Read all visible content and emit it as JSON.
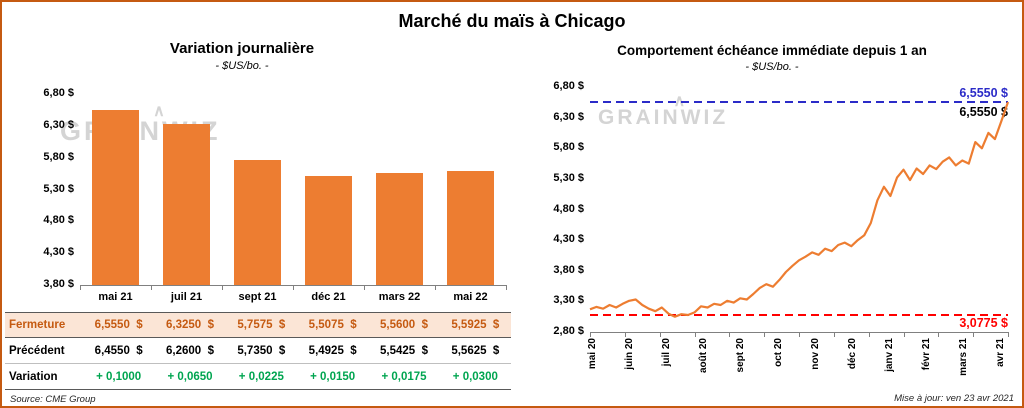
{
  "page": {
    "title": "Marché du maïs à Chicago",
    "source": "Source: CME Group",
    "updated": "Mise à jour: ven 23 avr 2021",
    "watermark": "GRAINWIZ"
  },
  "colors": {
    "accent_orange": "#ED7D31",
    "page_border": "#C55A11",
    "fermeture_bg": "#FBE5D6",
    "fermeture_text": "#C55A11",
    "variation_green": "#00A550",
    "high_line_blue": "#2B2BC8",
    "low_line_red": "#FF0000",
    "axis_gray": "#808080"
  },
  "chart_data": [
    {
      "type": "bar",
      "title": "Variation journalière",
      "subtitle": "- $US/bo. -",
      "categories": [
        "mai 21",
        "juil 21",
        "sept 21",
        "déc 21",
        "mars 22",
        "mai 22"
      ],
      "values": [
        6.555,
        6.325,
        5.7575,
        5.5075,
        5.56,
        5.5925
      ],
      "ylim": [
        3.8,
        6.8
      ],
      "ytick_labels": [
        "6,80 $",
        "6,30 $",
        "5,80 $",
        "5,30 $",
        "4,80 $",
        "4,30 $",
        "3,80 $"
      ],
      "bar_color": "#ED7D31",
      "grid": false,
      "legend": false
    },
    {
      "type": "line",
      "title": "Comportement échéance immédiate depuis 1 an",
      "subtitle": "- $US/bo. -",
      "x_labels": [
        "mai 20",
        "juin 20",
        "juil 20",
        "août 20",
        "sept 20",
        "oct 20",
        "nov 20",
        "déc 20",
        "janv 21",
        "févr 21",
        "mars 21",
        "avr 21"
      ],
      "values": [
        3.17,
        3.21,
        3.18,
        3.24,
        3.2,
        3.26,
        3.31,
        3.33,
        3.24,
        3.18,
        3.14,
        3.2,
        3.1,
        3.05,
        3.09,
        3.078,
        3.12,
        3.22,
        3.2,
        3.26,
        3.24,
        3.31,
        3.28,
        3.35,
        3.33,
        3.42,
        3.52,
        3.58,
        3.54,
        3.65,
        3.78,
        3.88,
        3.97,
        4.03,
        4.1,
        4.06,
        4.16,
        4.12,
        4.22,
        4.26,
        4.2,
        4.3,
        4.38,
        4.58,
        4.95,
        5.17,
        5.02,
        5.32,
        5.45,
        5.28,
        5.47,
        5.38,
        5.52,
        5.46,
        5.58,
        5.65,
        5.52,
        5.6,
        5.55,
        5.9,
        5.8,
        6.05,
        5.95,
        6.25,
        6.555
      ],
      "ylim": [
        2.8,
        6.8
      ],
      "ytick_labels": [
        "6,80 $",
        "6,30 $",
        "5,80 $",
        "5,30 $",
        "4,80 $",
        "4,30 $",
        "3,80 $",
        "3,30 $",
        "2,80 $"
      ],
      "line_color": "#ED7D31",
      "high_line": {
        "value": 6.555,
        "label": "6,5550 $",
        "color": "#2B2BC8",
        "style": "dashed"
      },
      "last_label": "6,5550 $",
      "low_line": {
        "value": 3.0775,
        "label": "3,0775 $",
        "color": "#FF0000",
        "style": "dashed"
      },
      "grid": false,
      "legend": false
    }
  ],
  "table": {
    "rows": [
      {
        "key": "fermeture",
        "label": "Fermeture",
        "values": [
          "6,5550  $",
          "6,3250  $",
          "5,7575  $",
          "5,5075  $",
          "5,5600  $",
          "5,5925  $"
        ]
      },
      {
        "key": "precedent",
        "label": "Précédent",
        "values": [
          "6,4550  $",
          "6,2600  $",
          "5,7350  $",
          "5,4925  $",
          "5,5425  $",
          "5,5625  $"
        ]
      },
      {
        "key": "variation",
        "label": "Variation",
        "values": [
          "+ 0,1000",
          "+ 0,0650",
          "+ 0,0225",
          "+ 0,0150",
          "+ 0,0175",
          "+ 0,0300"
        ]
      }
    ]
  }
}
